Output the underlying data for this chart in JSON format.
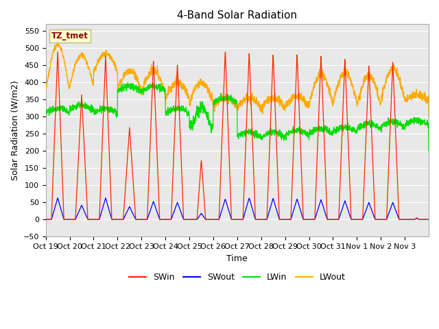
{
  "title": "4-Band Solar Radiation",
  "ylabel": "Solar Radiation (W/m2)",
  "xlabel": "Time",
  "ylim": [
    -50,
    570
  ],
  "yticks": [
    -50,
    0,
    50,
    100,
    150,
    200,
    250,
    300,
    350,
    400,
    450,
    500,
    550
  ],
  "xtick_labels": [
    "Oct 19",
    "Oct 20",
    "Oct 21",
    "Oct 22",
    "Oct 23",
    "Oct 24",
    "Oct 25",
    "Oct 26",
    "Oct 27",
    "Oct 28",
    "Oct 29",
    "Oct 30",
    "Oct 31",
    "Nov 1",
    "Nov 2",
    "Nov 3"
  ],
  "series_colors": {
    "SWin": "#ff2200",
    "SWout": "#0000ee",
    "LWin": "#00dd00",
    "LWout": "#ffaa00"
  },
  "annotation_text": "TZ_tmet",
  "annotation_color": "#8b0000",
  "annotation_bg": "#ffffcc",
  "title_fontsize": 11,
  "axis_fontsize": 9,
  "tick_fontsize": 8
}
